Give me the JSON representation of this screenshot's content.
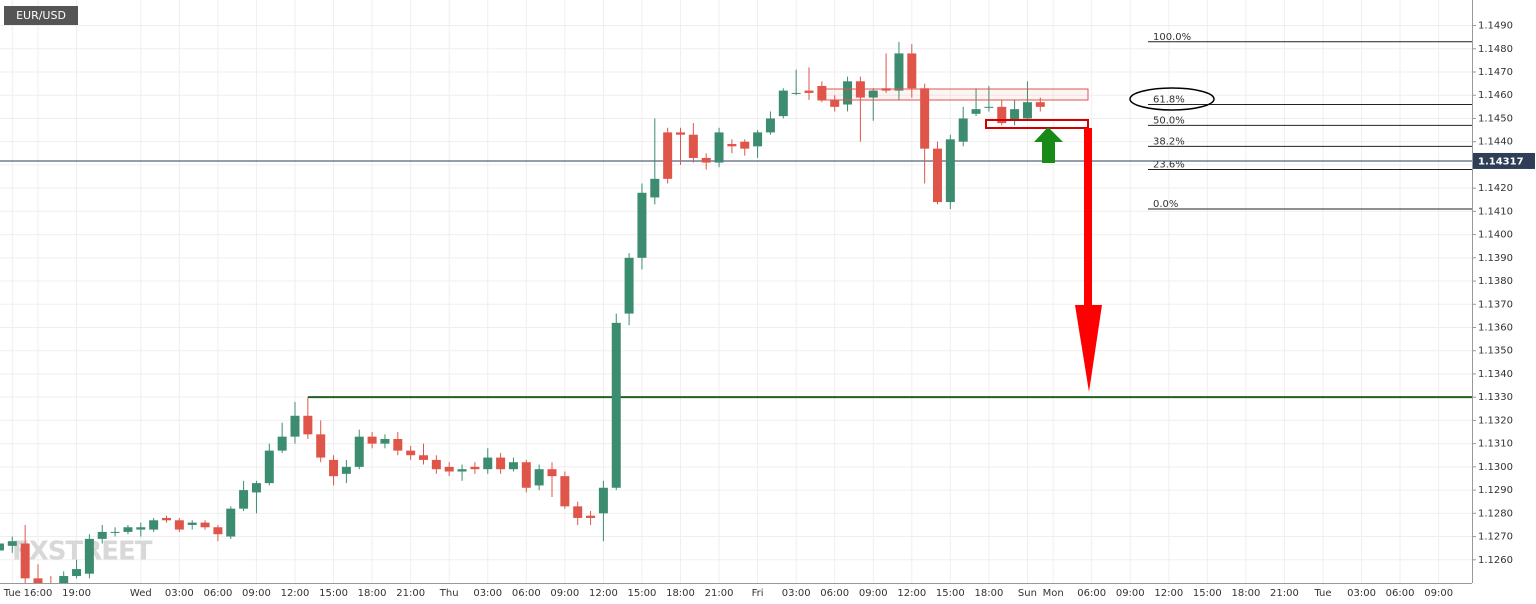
{
  "chart_data": {
    "type": "candlestick",
    "symbol": "EUR/USD",
    "watermark": "FXSTREET",
    "categories": [
      null,
      "Tue",
      null,
      "16:00",
      null,
      null,
      "19:00",
      null,
      null,
      null,
      null,
      "Wed",
      null,
      null,
      "03:00",
      null,
      null,
      "06:00",
      null,
      null,
      "09:00",
      null,
      null,
      "12:00",
      null,
      null,
      "15:00",
      null,
      null,
      "18:00",
      null,
      null,
      "21:00",
      null,
      null,
      "Thu",
      null,
      null,
      "03:00",
      null,
      null,
      "06:00",
      null,
      null,
      "09:00",
      null,
      null,
      "12:00",
      null,
      null,
      "15:00",
      null,
      null,
      "18:00",
      null,
      null,
      "21:00",
      null,
      null,
      "Fri",
      null,
      null,
      "03:00",
      null,
      null,
      "06:00",
      null,
      null,
      "09:00",
      null,
      null,
      "12:00",
      null,
      null,
      "15:00",
      null,
      null,
      "18:00",
      null,
      null,
      "Sun",
      null,
      "Mon",
      null,
      null,
      "06:00",
      null,
      null,
      "09:00",
      null,
      null,
      "12:00",
      null,
      null,
      "15:00",
      null,
      null,
      "18:00",
      null,
      null,
      "21:00",
      null,
      null,
      "Tue",
      null,
      null,
      "03:00",
      null,
      null,
      "06:00",
      null,
      null,
      "09:00",
      null,
      null
    ],
    "open": [
      1.1264,
      1.1266,
      1.1267,
      1.1252,
      1.125,
      1.1249,
      1.1253,
      1.1254,
      1.1269,
      1.1272,
      1.1272,
      1.1273,
      1.1273,
      1.1278,
      1.1277,
      1.1275,
      1.1276,
      1.1274,
      1.127,
      1.1282,
      1.1289,
      1.1293,
      1.1307,
      1.1313,
      1.1322,
      1.1314,
      1.1303,
      1.1297,
      1.13,
      1.1313,
      1.131,
      1.1312,
      1.1307,
      1.1305,
      1.1303,
      1.13,
      1.1298,
      1.13,
      1.1299,
      1.1304,
      1.1299,
      1.1302,
      1.1292,
      1.1299,
      1.1296,
      1.1283,
      1.1279,
      1.128,
      1.1291,
      1.1366,
      1.139,
      1.1416,
      1.1444,
      1.1444,
      1.1443,
      1.1433,
      1.1431,
      1.1439,
      1.144,
      1.1438,
      1.1444,
      1.1451,
      1.1461,
      1.1462,
      1.1464,
      1.1458,
      1.1456,
      1.1466,
      1.1459,
      1.1463,
      1.1462,
      1.1478,
      1.1463,
      1.1437,
      1.1414,
      1.144,
      1.1452,
      1.1455,
      1.1455,
      1.1449,
      1.145,
      1.1457,
      null,
      null,
      null,
      null,
      null,
      null,
      null,
      null,
      null,
      null,
      null,
      null,
      null,
      null,
      null,
      null,
      null,
      null,
      null,
      null,
      null,
      null,
      null,
      null,
      null,
      null,
      null,
      null,
      null,
      null,
      null,
      null,
      null
    ],
    "high": [
      1.1269,
      1.127,
      1.1275,
      1.1258,
      1.1253,
      1.1255,
      1.126,
      1.1271,
      1.1275,
      1.1274,
      1.1275,
      1.1276,
      1.1278,
      1.1279,
      1.1278,
      1.1277,
      1.1277,
      1.1275,
      1.1283,
      1.1294,
      1.1294,
      1.131,
      1.1319,
      1.1328,
      1.133,
      1.132,
      1.1305,
      1.1303,
      1.1316,
      1.1315,
      1.1314,
      1.1315,
      1.1309,
      1.131,
      1.1305,
      1.1302,
      1.1301,
      1.1302,
      1.1308,
      1.1306,
      1.1304,
      1.1303,
      1.1301,
      1.1302,
      1.1298,
      1.1285,
      1.1281,
      1.1294,
      1.1366,
      1.1392,
      1.1422,
      1.145,
      1.1446,
      1.1446,
      1.1448,
      1.1435,
      1.1446,
      1.1441,
      1.1441,
      1.1445,
      1.1453,
      1.1463,
      1.1471,
      1.1472,
      1.1466,
      1.146,
      1.1468,
      1.1468,
      1.1463,
      1.1478,
      1.1483,
      1.1482,
      1.1465,
      1.144,
      1.1443,
      1.1455,
      1.1463,
      1.1464,
      1.1458,
      1.1458,
      1.1466,
      1.1459,
      null,
      null,
      null,
      null,
      null,
      null,
      null,
      null,
      null,
      null,
      null,
      null,
      null,
      null,
      null,
      null,
      null,
      null,
      null,
      null,
      null,
      null,
      null,
      null,
      null,
      null,
      null,
      null,
      null,
      null,
      null,
      null,
      null
    ],
    "low": [
      1.1262,
      1.1263,
      1.125,
      1.1245,
      1.1245,
      1.1247,
      1.1252,
      1.1252,
      1.1267,
      1.127,
      1.1271,
      1.127,
      1.1272,
      1.1276,
      1.1272,
      1.1273,
      1.1273,
      1.1268,
      1.1269,
      1.1281,
      1.128,
      1.1292,
      1.1306,
      1.131,
      1.1312,
      1.1302,
      1.1292,
      1.1293,
      1.1299,
      1.1308,
      1.1308,
      1.1305,
      1.1303,
      1.1301,
      1.1297,
      1.1296,
      1.1294,
      1.1297,
      1.1297,
      1.1297,
      1.1298,
      1.1289,
      1.129,
      1.1287,
      1.1282,
      1.1275,
      1.1275,
      1.1268,
      1.129,
      1.1361,
      1.1385,
      1.1413,
      1.1422,
      1.143,
      1.1431,
      1.1428,
      1.1429,
      1.1435,
      1.1434,
      1.1433,
      1.1443,
      1.145,
      1.146,
      1.1458,
      1.1457,
      1.1453,
      1.1453,
      1.144,
      1.1449,
      1.1461,
      1.1458,
      1.1459,
      1.1422,
      1.1413,
      1.1411,
      1.1438,
      1.1451,
      1.1453,
      1.1447,
      1.1447,
      1.1449,
      1.1453,
      null,
      null,
      null,
      null,
      null,
      null,
      null,
      null,
      null,
      null,
      null,
      null,
      null,
      null,
      null,
      null,
      null,
      null,
      null,
      null,
      null,
      null,
      null,
      null,
      null,
      null,
      null,
      null,
      null,
      null,
      null,
      null,
      null
    ],
    "close": [
      1.1267,
      1.1268,
      1.1252,
      1.125,
      1.1249,
      1.1253,
      1.1256,
      1.1269,
      1.1272,
      1.1272,
      1.1274,
      1.1274,
      1.1277,
      1.1277,
      1.1273,
      1.1276,
      1.1274,
      1.1271,
      1.1282,
      1.129,
      1.1293,
      1.1307,
      1.1313,
      1.1322,
      1.1314,
      1.1304,
      1.1296,
      1.13,
      1.1313,
      1.131,
      1.1312,
      1.1307,
      1.1305,
      1.1303,
      1.1299,
      1.1298,
      1.1299,
      1.1299,
      1.1304,
      1.1299,
      1.1302,
      1.1291,
      1.1299,
      1.1296,
      1.1283,
      1.1278,
      1.1278,
      1.1291,
      1.1362,
      1.139,
      1.1418,
      1.1424,
      1.1424,
      1.1443,
      1.1433,
      1.1431,
      1.1444,
      1.1438,
      1.1437,
      1.1444,
      1.145,
      1.1462,
      1.1461,
      1.1461,
      1.1458,
      1.1455,
      1.1466,
      1.1459,
      1.1462,
      1.1462,
      1.1478,
      1.1463,
      1.1437,
      1.1414,
      1.1441,
      1.145,
      1.1454,
      1.1455,
      1.1448,
      1.1454,
      1.1457,
      1.1455,
      null,
      null,
      null,
      null,
      null,
      null,
      null,
      null,
      null,
      null,
      null,
      null,
      null,
      null,
      null,
      null,
      null,
      null,
      null,
      null,
      null,
      null,
      null,
      null,
      null,
      null,
      null,
      null,
      null,
      null,
      null,
      null,
      null
    ],
    "up_color": "#3c8c6f",
    "down_color": "#e0554a",
    "ylim": [
      1.125,
      1.1501
    ],
    "yticks": [
      {
        "value": 1.126,
        "label": "1.1260"
      },
      {
        "value": 1.127,
        "label": "1.1270"
      },
      {
        "value": 1.128,
        "label": "1.1280"
      },
      {
        "value": 1.129,
        "label": "1.1290"
      },
      {
        "value": 1.13,
        "label": "1.1300"
      },
      {
        "value": 1.131,
        "label": "1.1310"
      },
      {
        "value": 1.132,
        "label": "1.1320"
      },
      {
        "value": 1.133,
        "label": "1.1330"
      },
      {
        "value": 1.134,
        "label": "1.1340"
      },
      {
        "value": 1.135,
        "label": "1.1350"
      },
      {
        "value": 1.136,
        "label": "1.1360"
      },
      {
        "value": 1.137,
        "label": "1.1370"
      },
      {
        "value": 1.138,
        "label": "1.1380"
      },
      {
        "value": 1.139,
        "label": "1.1390"
      },
      {
        "value": 1.14,
        "label": "1.1400"
      },
      {
        "value": 1.141,
        "label": "1.1410"
      },
      {
        "value": 1.142,
        "label": "1.1420"
      },
      {
        "value": 1.143,
        "label": "1.1430"
      },
      {
        "value": 1.144,
        "label": "1.1440"
      },
      {
        "value": 1.145,
        "label": "1.1450"
      },
      {
        "value": 1.146,
        "label": "1.1460"
      },
      {
        "value": 1.147,
        "label": "1.1470"
      },
      {
        "value": 1.148,
        "label": "1.1480"
      },
      {
        "value": 1.149,
        "label": "1.1490"
      }
    ],
    "grid": true,
    "current_price": 1.14317,
    "support_level": 1.133,
    "fib_levels": [
      {
        "label": "100.0%",
        "value": 1.1483
      },
      {
        "label": "61.8%",
        "value": 1.1456
      },
      {
        "label": "50.0%",
        "value": 1.1447
      },
      {
        "label": "38.2%",
        "value": 1.1438
      },
      {
        "label": "23.6%",
        "value": 1.1428
      },
      {
        "label": "0.0%",
        "value": 1.1411
      }
    ]
  }
}
